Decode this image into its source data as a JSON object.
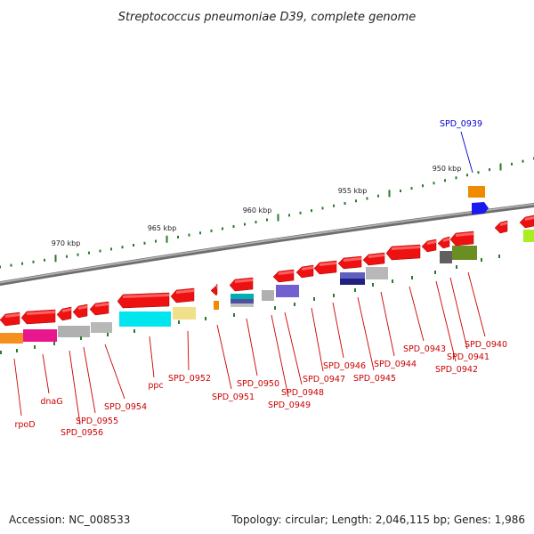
{
  "title": "Streptococcus pneumoniae D39, complete genome",
  "footer": {
    "accession": "Accession: NC_008533",
    "summary": "Topology: circular; Length: 2,046,115 bp; Genes: 1,986"
  },
  "scale_labels": [
    "950 kbp",
    "955 kbp",
    "960 kbp",
    "965 kbp",
    "970 kbp"
  ],
  "colors": {
    "backbone": "#8a8a8a",
    "gene_label_red": "#cc0000",
    "gene_label_blue": "#0000cc",
    "tick_green": "#2a7a2a"
  },
  "gene_labels": [
    {
      "text": "rpoD",
      "color": "#cc0000"
    },
    {
      "text": "dnaG",
      "color": "#cc0000"
    },
    {
      "text": "SPD_0956",
      "color": "#cc0000"
    },
    {
      "text": "SPD_0955",
      "color": "#cc0000"
    },
    {
      "text": "SPD_0954",
      "color": "#cc0000"
    },
    {
      "text": "ppc",
      "color": "#cc0000"
    },
    {
      "text": "SPD_0952",
      "color": "#cc0000"
    },
    {
      "text": "SPD_0951",
      "color": "#cc0000"
    },
    {
      "text": "SPD_0950",
      "color": "#cc0000"
    },
    {
      "text": "SPD_0949",
      "color": "#cc0000"
    },
    {
      "text": "SPD_0948",
      "color": "#cc0000"
    },
    {
      "text": "SPD_0947",
      "color": "#cc0000"
    },
    {
      "text": "SPD_0946",
      "color": "#cc0000"
    },
    {
      "text": "SPD_0945",
      "color": "#cc0000"
    },
    {
      "text": "SPD_0944",
      "color": "#cc0000"
    },
    {
      "text": "SPD_0943",
      "color": "#cc0000"
    },
    {
      "text": "SPD_0942",
      "color": "#cc0000"
    },
    {
      "text": "SPD_0941",
      "color": "#cc0000"
    },
    {
      "text": "SPD_0940",
      "color": "#cc0000"
    },
    {
      "text": "SPD_0939",
      "color": "#0000cc"
    }
  ]
}
